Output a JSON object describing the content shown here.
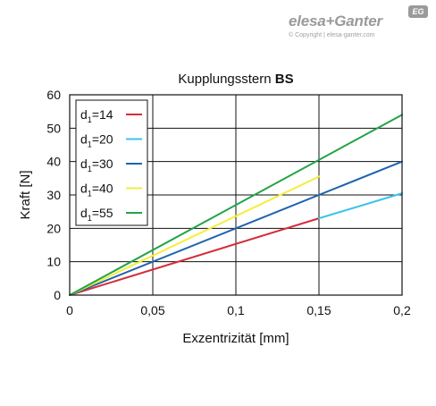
{
  "brand": {
    "name": "elesa+Ganter",
    "badge": "EG",
    "copyright": "© Copyright | elesa-ganter.com"
  },
  "chart_data": {
    "type": "line",
    "title_prefix": "Kupplungsstern ",
    "title_bold": "BS",
    "xlabel": "Exzentrizität [mm]",
    "ylabel": "Kraft [N]",
    "xlim": [
      0,
      0.2
    ],
    "ylim": [
      0,
      60
    ],
    "x_ticks": [
      0,
      0.05,
      0.1,
      0.15,
      0.2
    ],
    "x_tick_labels": [
      "0",
      "0,05",
      "0,1",
      "0,15",
      "0,2"
    ],
    "y_ticks": [
      0,
      10,
      20,
      30,
      40,
      50,
      60
    ],
    "y_tick_labels": [
      "0",
      "10",
      "20",
      "30",
      "40",
      "50",
      "60"
    ],
    "grid": true,
    "legend_position": "top-left",
    "series": [
      {
        "name": "d1=14",
        "label_main": "d",
        "label_sub": "1",
        "label_rest": "=14",
        "color": "#d62c3a",
        "segments": [
          {
            "x": [
              0,
              0.15
            ],
            "y": [
              0,
              23
            ],
            "color": "#d62c3a"
          },
          {
            "x": [
              0.15,
              0.2
            ],
            "y": [
              23,
              30.5
            ],
            "color": "#3cc3e8"
          }
        ]
      },
      {
        "name": "d1=20",
        "label_main": "d",
        "label_sub": "1",
        "label_rest": "=20",
        "color": "#3cc3e8",
        "segments": []
      },
      {
        "name": "d1=30",
        "label_main": "d",
        "label_sub": "1",
        "label_rest": "=30",
        "color": "#1f63ad",
        "segments": [
          {
            "x": [
              0,
              0.2
            ],
            "y": [
              0,
              40
            ],
            "color": "#1f63ad"
          }
        ]
      },
      {
        "name": "d1=40",
        "label_main": "d",
        "label_sub": "1",
        "label_rest": "=40",
        "color": "#f4ee3a",
        "segments": [
          {
            "x": [
              0,
              0.15
            ],
            "y": [
              0,
              35.5
            ],
            "color": "#f4ee3a"
          }
        ]
      },
      {
        "name": "d1=55",
        "label_main": "d",
        "label_sub": "1",
        "label_rest": "=55",
        "color": "#23a346",
        "segments": [
          {
            "x": [
              0,
              0.2
            ],
            "y": [
              0,
              54
            ],
            "color": "#23a346"
          }
        ]
      }
    ]
  }
}
